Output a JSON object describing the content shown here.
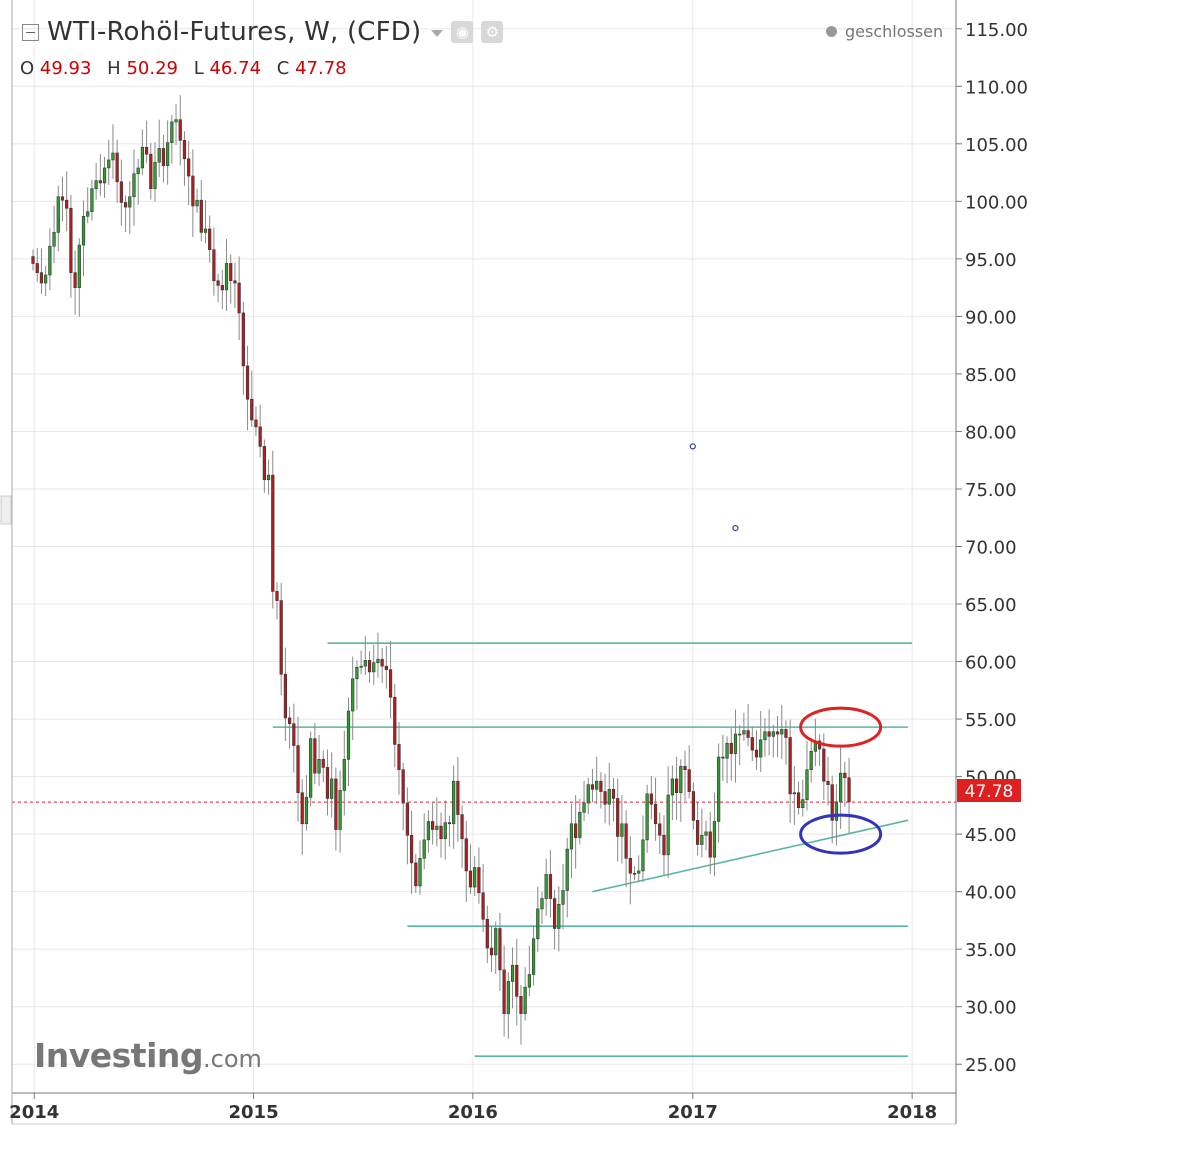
{
  "header": {
    "title": "WTI-Rohöl-Futures, W, (CFD)",
    "ohlc": {
      "o_label": "O",
      "o": "49.93",
      "h_label": "H",
      "h": "50.29",
      "l_label": "L",
      "l": "46.74",
      "c_label": "C",
      "c": "47.78"
    },
    "status": "geschlossen"
  },
  "logo": {
    "main": "Investing",
    "suffix": ".com"
  },
  "colors": {
    "up": "#2ca02c",
    "down": "#b71c1c",
    "wick": "#8a8a8a",
    "trendline": "#5ab5a5",
    "price_line": "#e02020",
    "price_tag": "#e02020",
    "ellipse_red": "#dd2222",
    "ellipse_blue": "#3333bb",
    "grid": "#e8e8e8"
  },
  "chart_data": {
    "type": "candlestick",
    "interval": "weekly",
    "ylim": [
      22.5,
      117.5
    ],
    "xlim": [
      "2013-11-25",
      "2018-03-15"
    ],
    "y_ticks": [
      "115.00",
      "110.00",
      "105.00",
      "100.00",
      "95.00",
      "90.00",
      "85.00",
      "80.00",
      "75.00",
      "70.00",
      "65.00",
      "60.00",
      "55.00",
      "50.00",
      "45.00",
      "40.00",
      "35.00",
      "30.00",
      "25.00"
    ],
    "x_ticks": [
      {
        "date": "2014-01-01",
        "label": "2014"
      },
      {
        "date": "2015-01-01",
        "label": "2015"
      },
      {
        "date": "2016-01-01",
        "label": "2016"
      },
      {
        "date": "2017-01-01",
        "label": "2017"
      },
      {
        "date": "2018-01-01",
        "label": "2018"
      }
    ],
    "current_price": "47.78",
    "closes": {
      "start_date": "2013-12-30",
      "values": [
        94.6,
        93.8,
        92.9,
        93.6,
        96.1,
        97.3,
        100.4,
        100.1,
        99.4,
        93.8,
        92.5,
        96.2,
        98.7,
        99.1,
        101.1,
        101.8,
        101.6,
        102.9,
        103.6,
        104.2,
        101.7,
        99.9,
        99.5,
        100.4,
        102.4,
        102.9,
        104.7,
        104.1,
        101.1,
        103.4,
        104.6,
        103.1,
        105.1,
        106.9,
        107.1,
        105.3,
        103.7,
        102.2,
        99.6,
        100.1,
        97.3,
        97.6,
        95.8,
        93.1,
        92.7,
        92.3,
        94.6,
        93.1,
        92.9,
        90.3,
        85.7,
        82.8,
        81.0,
        80.4,
        78.7,
        75.8,
        76.2,
        66.1,
        65.3,
        58.9,
        55.1,
        54.6,
        52.7,
        48.6,
        45.9,
        48.2,
        53.3,
        50.3,
        51.5,
        50.8,
        48.1,
        49.8,
        45.4,
        48.8,
        51.5,
        55.7,
        58.5,
        59.5,
        59.6,
        60.1,
        59.1,
        59.9,
        60.2,
        59.6,
        59.3,
        56.9,
        52.8,
        50.6,
        47.7,
        44.9,
        42.5,
        40.5,
        42.9,
        44.5,
        46.1,
        45.4,
        45.7,
        44.6,
        46.0,
        45.9,
        49.6,
        46.7,
        44.6,
        41.8,
        40.4,
        42.1,
        39.9,
        37.6,
        35.1,
        34.5,
        36.8,
        33.2,
        29.4,
        32.2,
        33.6,
        30.9,
        29.4,
        31.7,
        32.8,
        35.9,
        38.5,
        39.4,
        41.5,
        39.4,
        36.8,
        38.9,
        40.1,
        43.7,
        45.9,
        44.7,
        46.9,
        47.7,
        49.3,
        48.9,
        49.6,
        48.7,
        47.6,
        48.9,
        48.1,
        44.8,
        45.9,
        42.9,
        41.6,
        41.6,
        41.8,
        44.5,
        48.5,
        47.6,
        45.9,
        44.9,
        43.2,
        48.4,
        49.8,
        48.6,
        50.9,
        50.6,
        48.7,
        46.2,
        44.1,
        44.9,
        45.2,
        43.0,
        46.1,
        51.7,
        51.6,
        52.9,
        52.0,
        53.7,
        53.7,
        54.0,
        53.4,
        52.3,
        51.7,
        53.2,
        53.9,
        53.5,
        53.9,
        53.7,
        54.1,
        53.4,
        48.5,
        48.6,
        47.3,
        48.0,
        50.6,
        52.2,
        53.1,
        52.4,
        49.6,
        49.3,
        46.2,
        47.8,
        50.3,
        49.9,
        47.8
      ]
    },
    "annotations": {
      "horizontal_levels": [
        {
          "value": 61.6,
          "from": "2015-05-04",
          "to": "2018-01-01"
        },
        {
          "value": 54.3,
          "from": "2015-02-02",
          "to": "2017-12-25"
        },
        {
          "value": 37.0,
          "from": "2015-09-14",
          "to": "2017-12-25"
        },
        {
          "value": 25.7,
          "from": "2016-01-04",
          "to": "2017-12-25"
        }
      ],
      "support_trend": {
        "start": {
          "date": "2016-07-18",
          "value": 40.0
        },
        "end": {
          "date": "2017-12-25",
          "value": 46.2
        }
      },
      "ellipses": [
        {
          "date": "2017-09-04",
          "value": 54.3,
          "color": "red"
        },
        {
          "date": "2017-09-04",
          "value": 45.0,
          "color": "blue"
        }
      ],
      "markers": [
        {
          "date": "2017-01-01",
          "value": 78.7
        },
        {
          "date": "2017-03-13",
          "value": 71.6
        }
      ]
    }
  }
}
